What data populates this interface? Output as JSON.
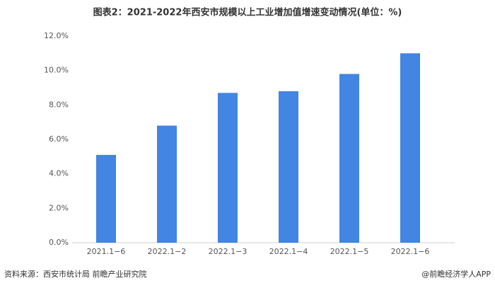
{
  "chart_data": {
    "type": "bar",
    "title": "图表2：2021-2022年西安市规模以上工业增加值增速变动情况(单位：%)",
    "categories": [
      "2021.1−6",
      "2022.1−2",
      "2022.1−3",
      "2022.1−4",
      "2022.1−5",
      "2022.1−6"
    ],
    "values": [
      5.1,
      6.8,
      8.7,
      8.8,
      9.8,
      11.0
    ],
    "color": "#4285e2",
    "ylim": [
      0,
      12
    ],
    "yticks": [
      {
        "value": 0,
        "label": "0.0%"
      },
      {
        "value": 2,
        "label": "2.0%"
      },
      {
        "value": 4,
        "label": "4.0%"
      },
      {
        "value": 6,
        "label": "6.0%"
      },
      {
        "value": 8,
        "label": "8.0%"
      },
      {
        "value": 10,
        "label": "10.0%"
      },
      {
        "value": 12,
        "label": "12.0%"
      }
    ],
    "grid": false,
    "source": "资料来源：西安市统计局 前瞻产业研究院",
    "credit": "@前瞻经济学人APP"
  }
}
